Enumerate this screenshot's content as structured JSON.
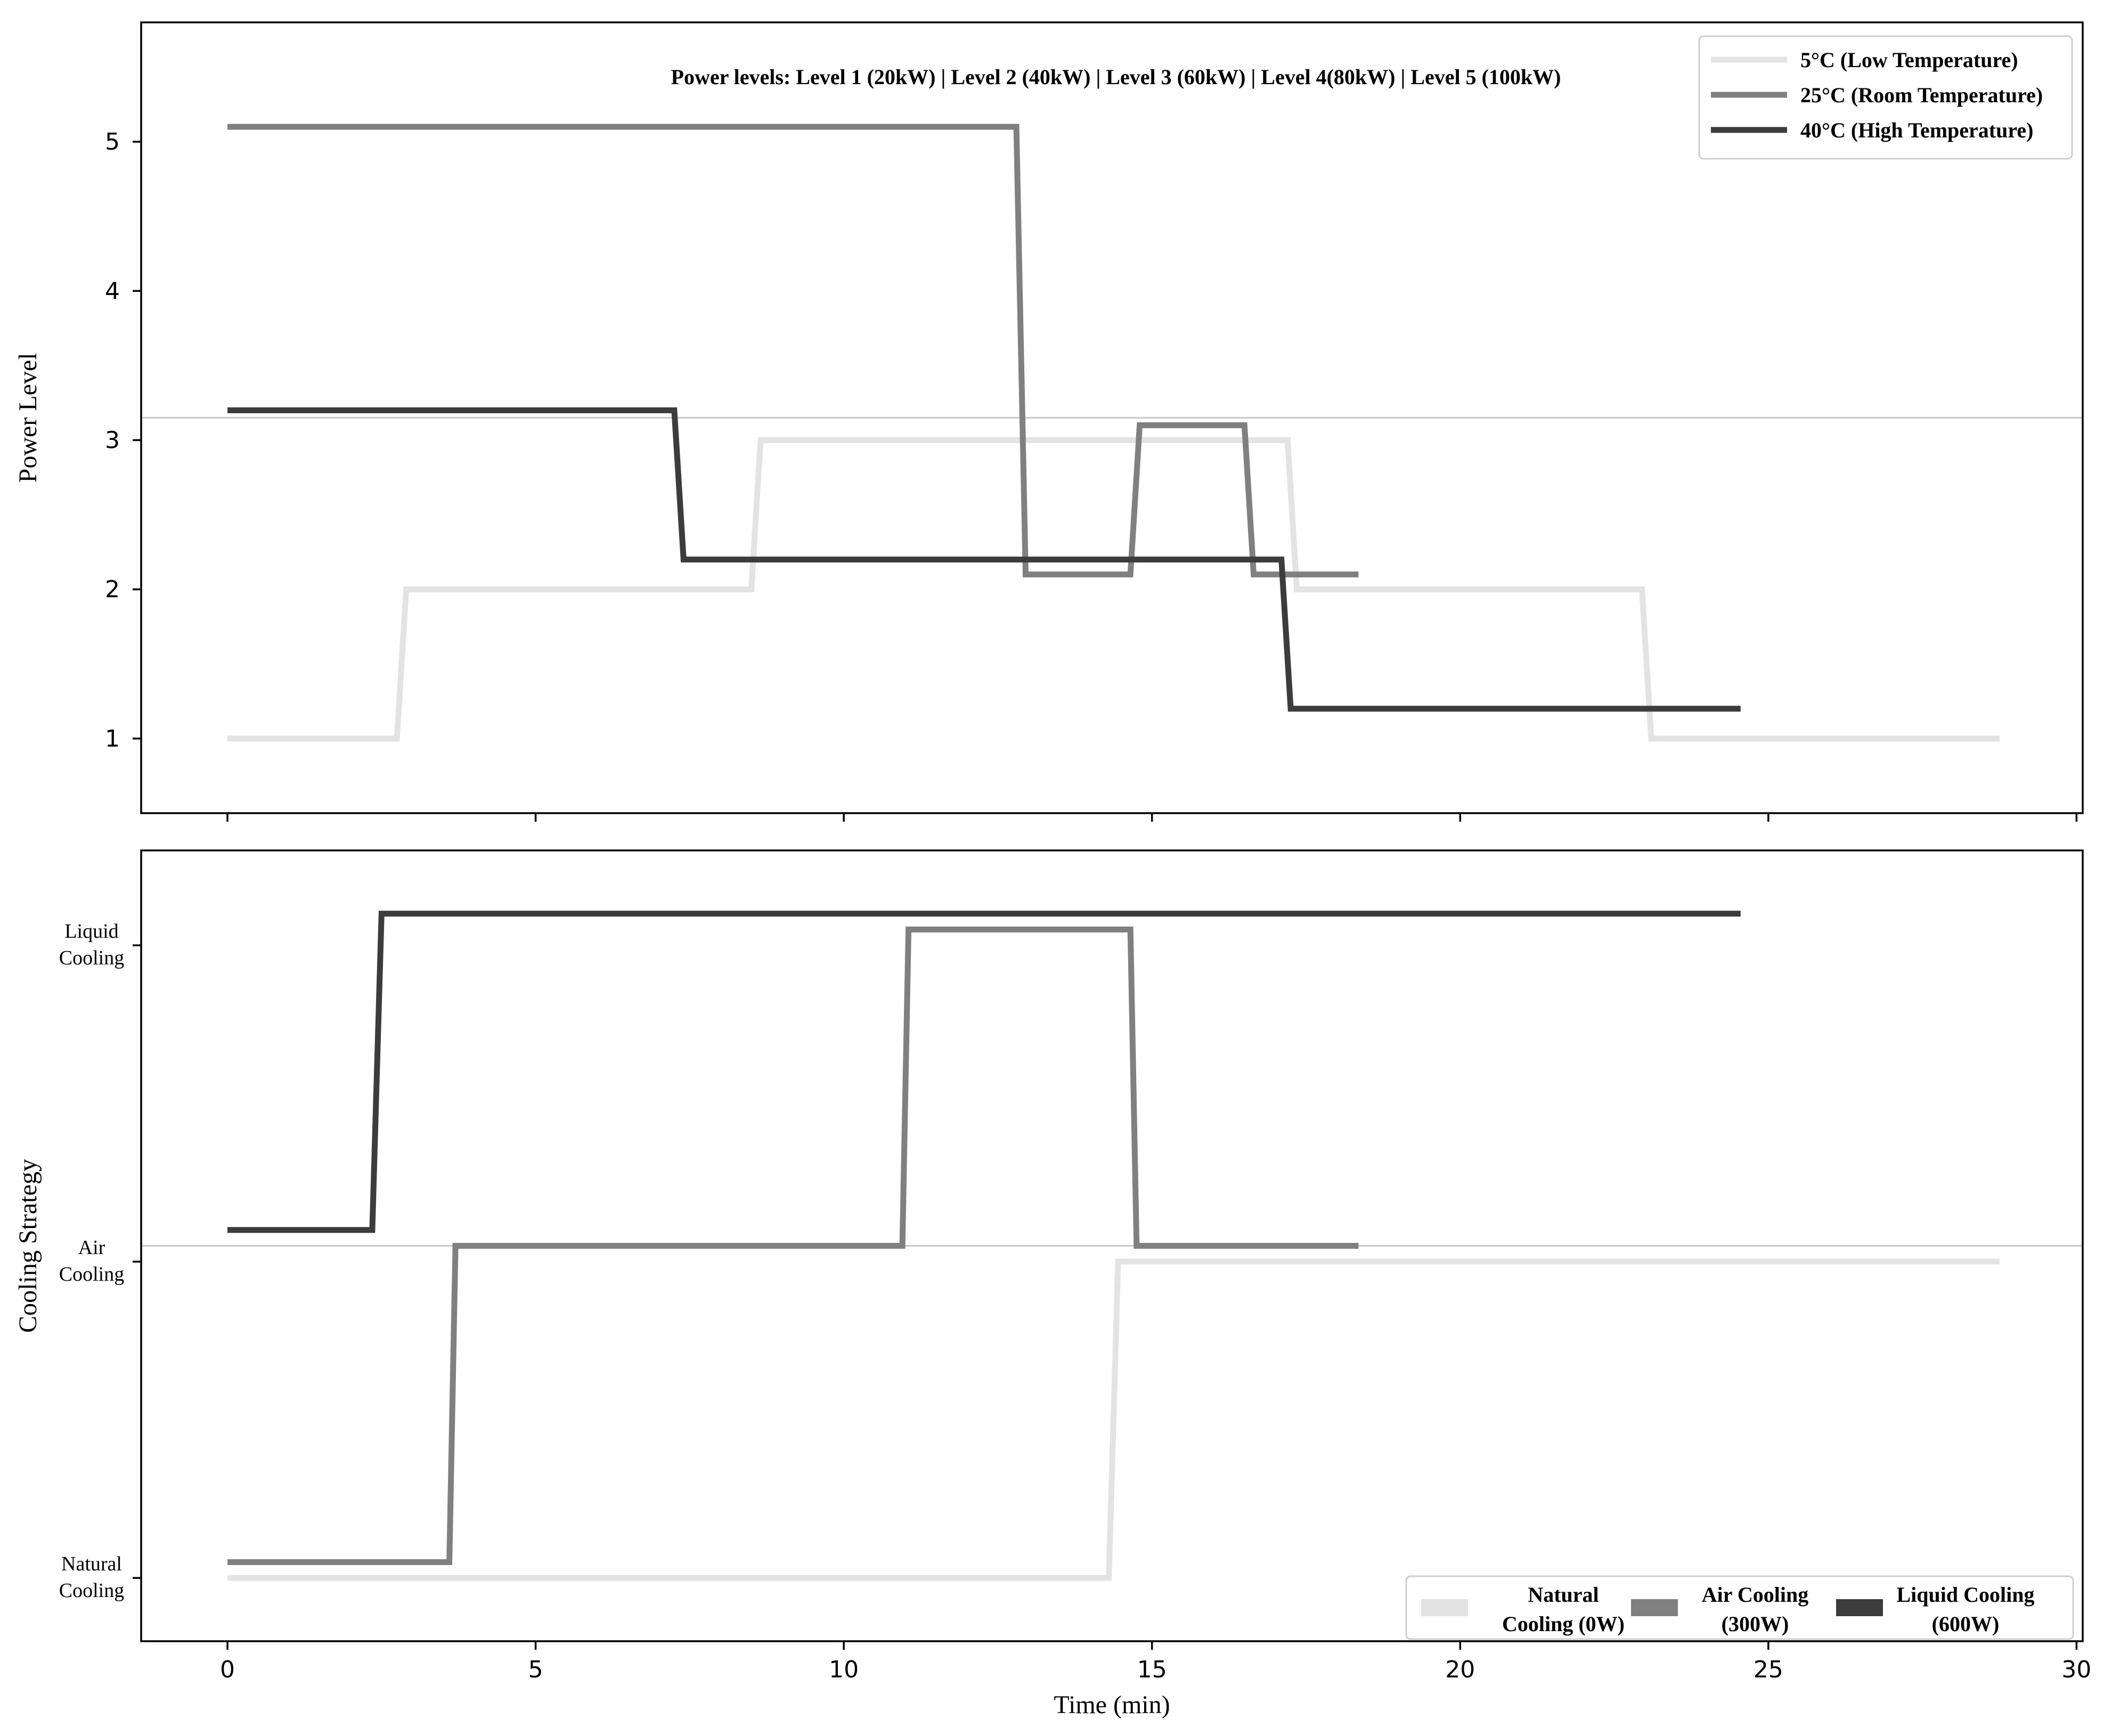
{
  "chart_data": [
    {
      "type": "line",
      "title": "",
      "annotation": "Power levels: Level 1 (20kW) | Level 2 (40kW) | Level 3 (60kW) | Level 4(80kW) | Level 5 (100kW)",
      "xlabel": "",
      "ylabel": "Power Level",
      "xlim": [
        -1.4,
        30.1
      ],
      "ylim": [
        0.5,
        5.8
      ],
      "xticks": [
        "0",
        "5",
        "10",
        "15",
        "20",
        "25",
        "30"
      ],
      "yticks": [
        "1",
        "2",
        "3",
        "4",
        "5"
      ],
      "reference_line": 3.15,
      "legend_position": "top-right",
      "series": [
        {
          "name": "5°C (Low Temperature)",
          "color": "#e3e3e3",
          "points": [
            [
              0,
              1.0
            ],
            [
              2.75,
              1.0
            ],
            [
              2.9,
              2.0
            ],
            [
              8.5,
              2.0
            ],
            [
              8.65,
              3.0
            ],
            [
              17.2,
              3.0
            ],
            [
              17.35,
              2.0
            ],
            [
              22.95,
              2.0
            ],
            [
              23.1,
              1.0
            ],
            [
              28.75,
              1.0
            ]
          ]
        },
        {
          "name": "25°C (Room Temperature)",
          "color": "#808080",
          "points": [
            [
              0,
              5.1
            ],
            [
              12.8,
              5.1
            ],
            [
              12.95,
              2.1
            ],
            [
              14.65,
              2.1
            ],
            [
              14.8,
              3.1
            ],
            [
              16.5,
              3.1
            ],
            [
              16.65,
              2.1
            ],
            [
              18.35,
              2.1
            ]
          ]
        },
        {
          "name": "40°C (High Temperature)",
          "color": "#3c3c3c",
          "points": [
            [
              0,
              3.2
            ],
            [
              7.25,
              3.2
            ],
            [
              7.4,
              2.2
            ],
            [
              17.1,
              2.2
            ],
            [
              17.25,
              1.2
            ],
            [
              24.55,
              1.2
            ]
          ]
        }
      ]
    },
    {
      "type": "line",
      "title": "",
      "xlabel": "Time (min)",
      "ylabel": "Cooling Strategy",
      "xlim": [
        -1.4,
        30.1
      ],
      "ylim": [
        -0.2,
        2.3
      ],
      "xticks": [
        "0",
        "5",
        "10",
        "15",
        "20",
        "25",
        "30"
      ],
      "ytick_values": [
        0,
        1,
        2
      ],
      "ytick_labels": [
        [
          "Natural",
          "Cooling"
        ],
        [
          "Air",
          "Cooling"
        ],
        [
          "Liquid",
          "Cooling"
        ]
      ],
      "reference_line": 1.05,
      "legend_position": "bottom-right",
      "legend": [
        {
          "label": [
            "Natural",
            "Cooling (0W)"
          ],
          "color": "#e3e3e3"
        },
        {
          "label": [
            "Air Cooling",
            "(300W)"
          ],
          "color": "#808080"
        },
        {
          "label": [
            "Liquid Cooling",
            "(600W)"
          ],
          "color": "#3c3c3c"
        }
      ],
      "series": [
        {
          "color": "#e3e3e3",
          "points": [
            [
              0,
              0.0
            ],
            [
              14.3,
              0.0
            ],
            [
              14.45,
              1.0
            ],
            [
              28.75,
              1.0
            ]
          ]
        },
        {
          "color": "#808080",
          "points": [
            [
              0,
              0.05
            ],
            [
              3.6,
              0.05
            ],
            [
              3.7,
              1.05
            ],
            [
              10.95,
              1.05
            ],
            [
              11.05,
              2.05
            ],
            [
              14.65,
              2.05
            ],
            [
              14.75,
              1.05
            ],
            [
              18.35,
              1.05
            ]
          ]
        },
        {
          "color": "#3c3c3c",
          "points": [
            [
              0,
              1.1
            ],
            [
              2.35,
              1.1
            ],
            [
              2.5,
              2.1
            ],
            [
              24.55,
              2.1
            ]
          ]
        }
      ]
    }
  ]
}
